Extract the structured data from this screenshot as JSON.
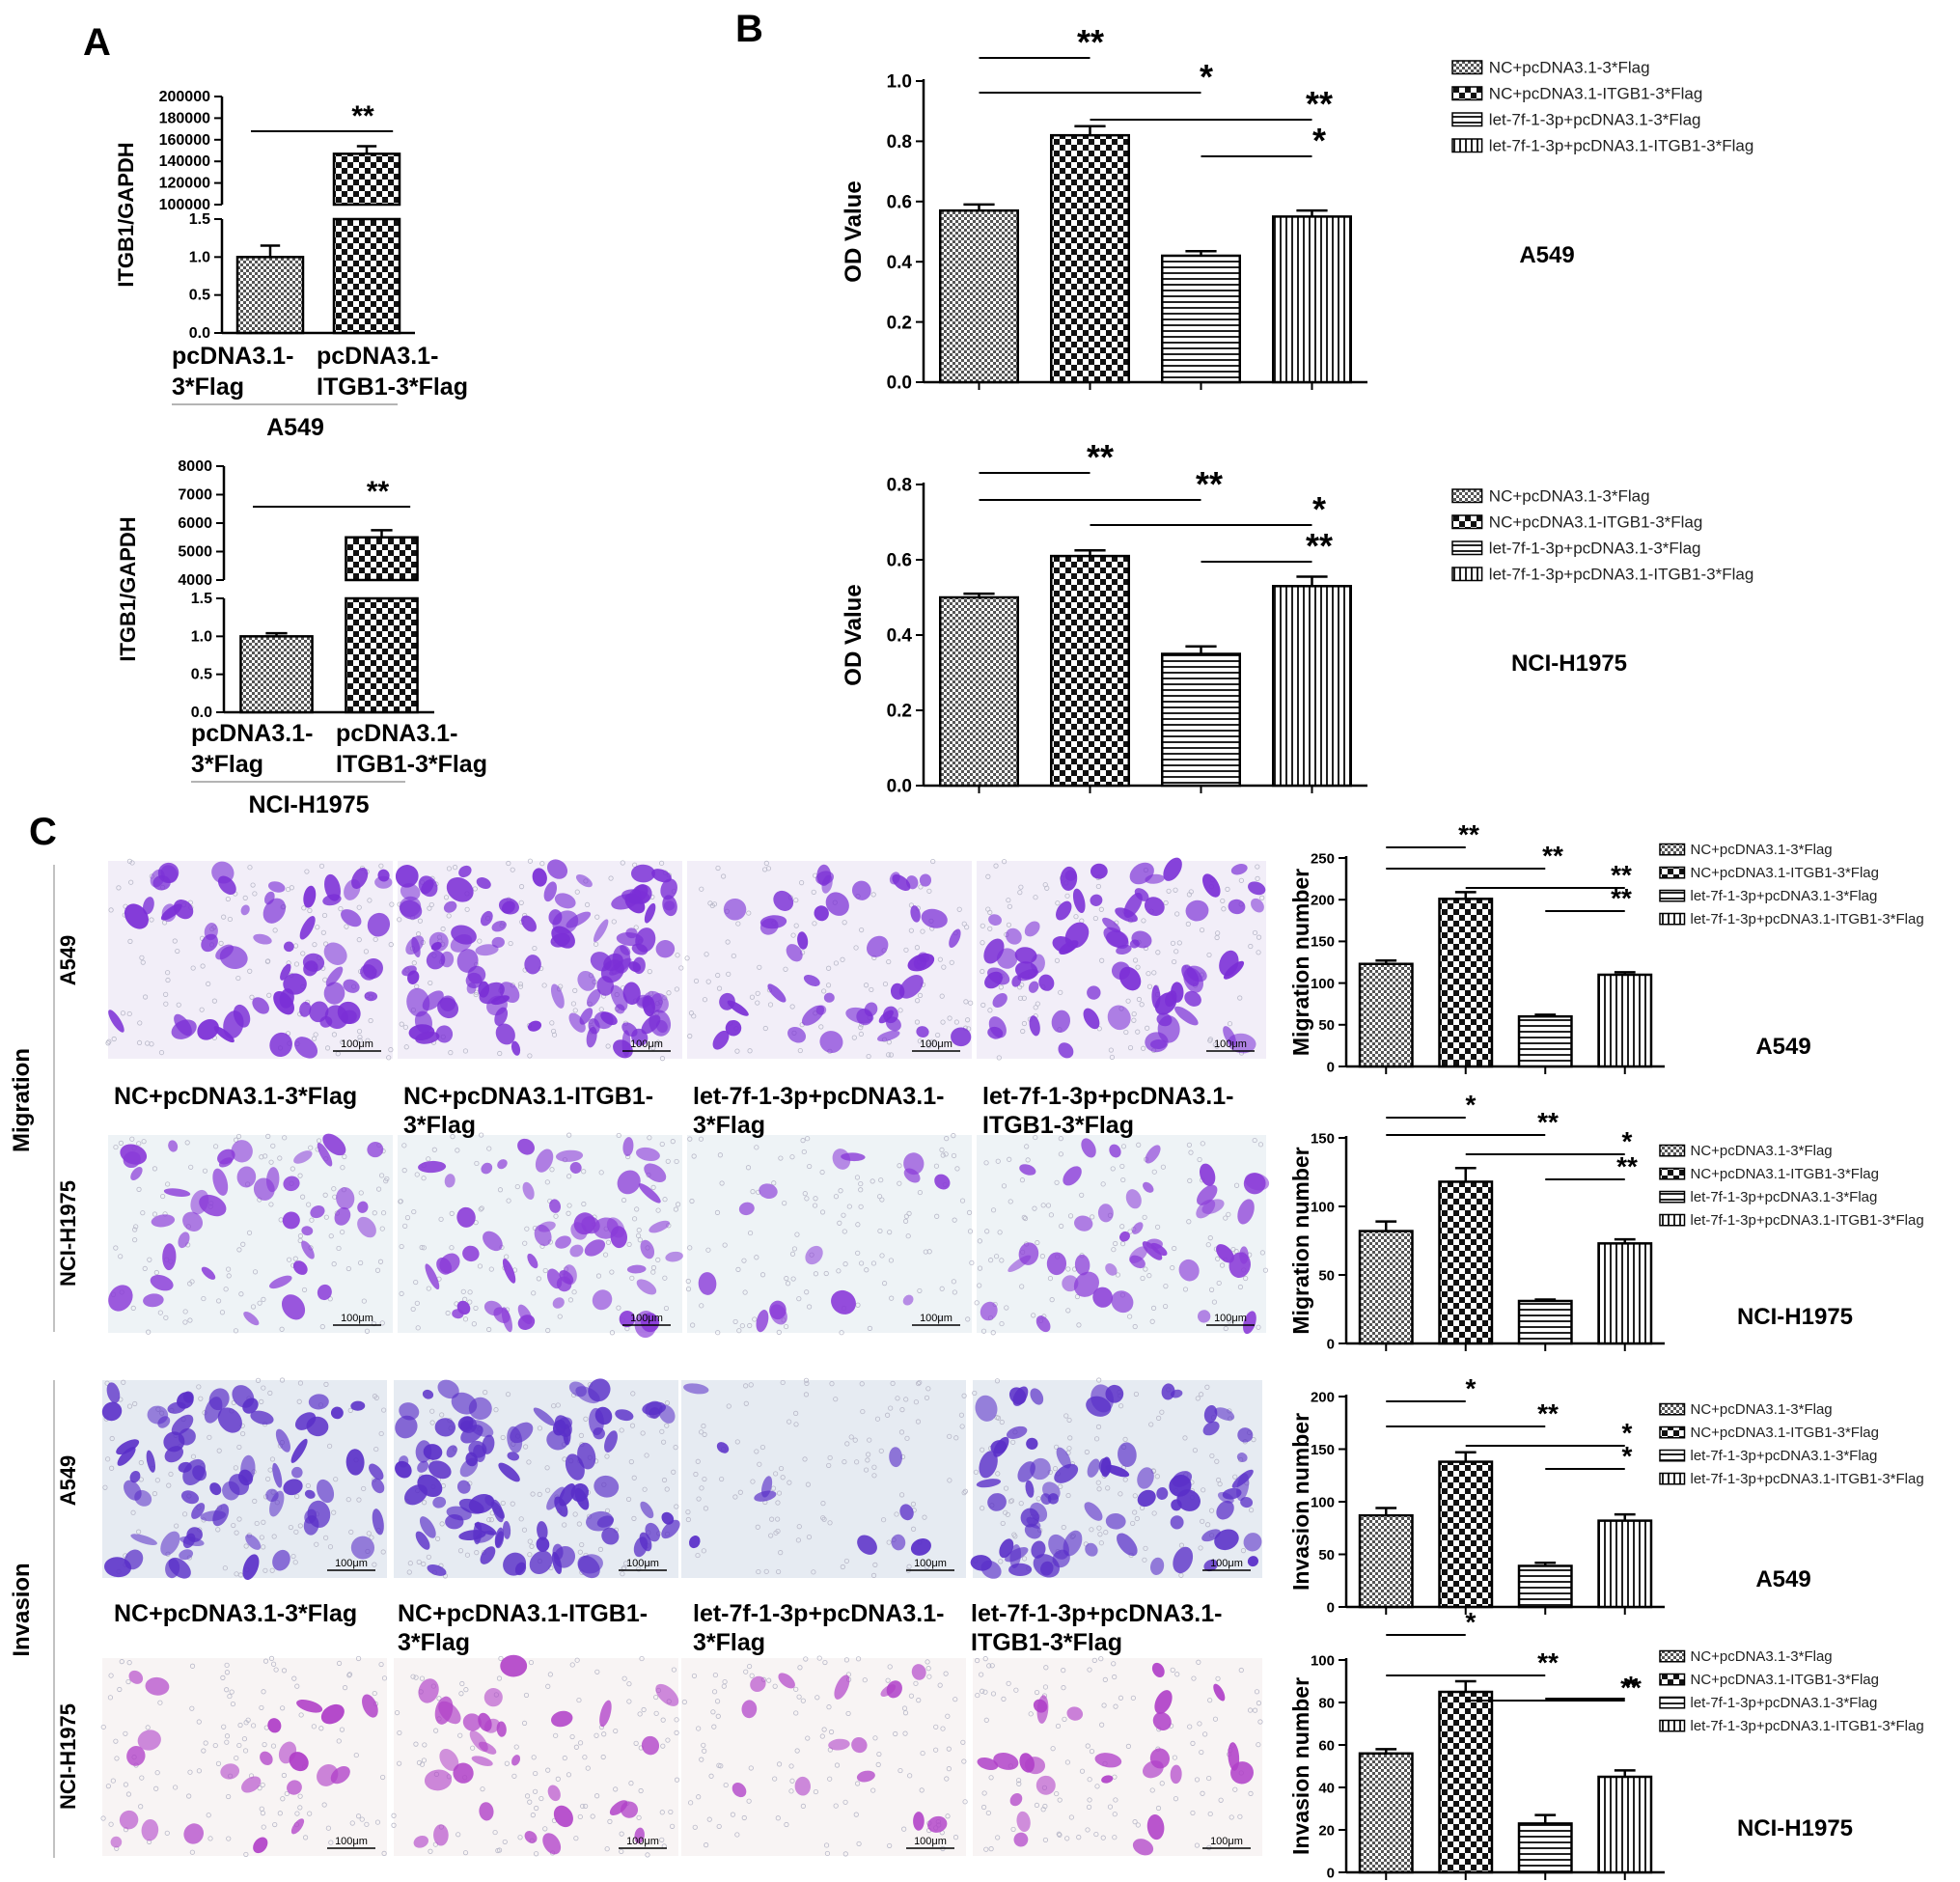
{
  "panels": {
    "a": "A",
    "b": "B",
    "c": "C"
  },
  "colors": {
    "bar_fill": "#ffffff",
    "bar_stroke": "#000000",
    "dark_hatch": "#555555",
    "stain_a": "#8a2be2",
    "stain_b": "#7b1fa2",
    "stain_c": "#a020c0",
    "stain_bg": "#efe9f5"
  },
  "labels": {
    "sections": {
      "migration": "Migration",
      "invasion": "Invasion"
    },
    "cells": {
      "a549": "A549",
      "h1975": "NCI-H1975"
    },
    "scale": "100μm",
    "images": [
      {
        "line1": "NC+pcDNA3.1-3*Flag",
        "line2": ""
      },
      {
        "line1": "NC+pcDNA3.1-ITGB1-",
        "line2": "3*Flag"
      },
      {
        "line1": "let-7f-1-3p+pcDNA3.1-",
        "line2": "3*Flag"
      },
      {
        "line1": "let-7f-1-3p+pcDNA3.1-",
        "line2": "ITGB1-3*Flag"
      }
    ]
  },
  "chart_data": [
    {
      "id": "A1",
      "type": "bar",
      "ylabel": "ITGB1/GAPDH",
      "group_label": "A549",
      "broken_axis": true,
      "categories": [
        [
          "pcDNA3.1-",
          "3*Flag"
        ],
        [
          "pcDNA3.1-",
          "ITGB1-3*Flag"
        ]
      ],
      "values": [
        1.0,
        147000
      ],
      "errors": [
        0.15,
        7000
      ],
      "ylim_lower": [
        0,
        1.5
      ],
      "ylim_upper": [
        100000,
        200000
      ],
      "yticks_lower": [
        0.0,
        0.5,
        1.0,
        1.5
      ],
      "yticks_upper": [
        100000,
        120000,
        140000,
        160000,
        180000,
        200000
      ],
      "sig": [
        {
          "from": 0,
          "to": 1,
          "label": "**"
        }
      ]
    },
    {
      "id": "A2",
      "type": "bar",
      "ylabel": "ITGB1/GAPDH",
      "group_label": "NCI-H1975",
      "broken_axis": true,
      "categories": [
        [
          "pcDNA3.1-",
          "3*Flag"
        ],
        [
          "pcDNA3.1-",
          "ITGB1-3*Flag"
        ]
      ],
      "values": [
        1.0,
        5500
      ],
      "errors": [
        0.04,
        250
      ],
      "ylim_lower": [
        0,
        1.5
      ],
      "ylim_upper": [
        4000,
        8000
      ],
      "yticks_lower": [
        0.0,
        0.5,
        1.0,
        1.5
      ],
      "yticks_upper": [
        4000,
        5000,
        6000,
        7000,
        8000
      ],
      "sig": [
        {
          "from": 0,
          "to": 1,
          "label": "**"
        }
      ]
    },
    {
      "id": "B1",
      "type": "bar",
      "ylabel": "OD Value",
      "cell": "A549",
      "series": [
        "NC+pcDNA3.1-3*Flag",
        "NC+pcDNA3.1-ITGB1-3*Flag",
        "let-7f-1-3p+pcDNA3.1-3*Flag",
        "let-7f-1-3p+pcDNA3.1-ITGB1-3*Flag"
      ],
      "values": [
        0.57,
        0.82,
        0.42,
        0.55
      ],
      "errors": [
        0.02,
        0.03,
        0.015,
        0.02
      ],
      "ylim": [
        0,
        1.0
      ],
      "yticks": [
        0.0,
        0.2,
        0.4,
        0.6,
        0.8,
        1.0
      ],
      "sig": [
        {
          "from": 0,
          "to": 1,
          "label": "**"
        },
        {
          "from": 0,
          "to": 2,
          "label": "*"
        },
        {
          "from": 1,
          "to": 3,
          "label": "**"
        },
        {
          "from": 2,
          "to": 3,
          "label": "*"
        }
      ]
    },
    {
      "id": "B2",
      "type": "bar",
      "ylabel": "OD Value",
      "cell": "NCI-H1975",
      "series": [
        "NC+pcDNA3.1-3*Flag",
        "NC+pcDNA3.1-ITGB1-3*Flag",
        "let-7f-1-3p+pcDNA3.1-3*Flag",
        "let-7f-1-3p+pcDNA3.1-ITGB1-3*Flag"
      ],
      "values": [
        0.5,
        0.61,
        0.35,
        0.53
      ],
      "errors": [
        0.01,
        0.015,
        0.02,
        0.025
      ],
      "ylim": [
        0,
        0.8
      ],
      "yticks": [
        0.0,
        0.2,
        0.4,
        0.6,
        0.8
      ],
      "sig": [
        {
          "from": 0,
          "to": 1,
          "label": "**"
        },
        {
          "from": 0,
          "to": 2,
          "label": "**"
        },
        {
          "from": 1,
          "to": 3,
          "label": "*"
        },
        {
          "from": 2,
          "to": 3,
          "label": "**"
        }
      ]
    },
    {
      "id": "C1",
      "type": "bar",
      "ylabel": "Migration number",
      "cell": "A549",
      "series": [
        "NC+pcDNA3.1-3*Flag",
        "NC+pcDNA3.1-ITGB1-3*Flag",
        "let-7f-1-3p+pcDNA3.1-3*Flag",
        "let-7f-1-3p+pcDNA3.1-ITGB1-3*Flag"
      ],
      "values": [
        123,
        201,
        60,
        110
      ],
      "errors": [
        4,
        8,
        2,
        3
      ],
      "ylim": [
        0,
        250
      ],
      "yticks": [
        0,
        50,
        100,
        150,
        200,
        250
      ],
      "sig": [
        {
          "from": 0,
          "to": 1,
          "label": "**"
        },
        {
          "from": 0,
          "to": 2,
          "label": "**"
        },
        {
          "from": 1,
          "to": 3,
          "label": "**"
        },
        {
          "from": 2,
          "to": 3,
          "label": "**"
        }
      ]
    },
    {
      "id": "C2",
      "type": "bar",
      "ylabel": "Migration number",
      "cell": "NCI-H1975",
      "series": [
        "NC+pcDNA3.1-3*Flag",
        "NC+pcDNA3.1-ITGB1-3*Flag",
        "let-7f-1-3p+pcDNA3.1-3*Flag",
        "let-7f-1-3p+pcDNA3.1-ITGB1-3*Flag"
      ],
      "values": [
        82,
        118,
        31,
        73
      ],
      "errors": [
        7,
        10,
        1,
        3
      ],
      "ylim": [
        0,
        150
      ],
      "yticks": [
        0,
        50,
        100,
        150
      ],
      "sig": [
        {
          "from": 0,
          "to": 1,
          "label": "*"
        },
        {
          "from": 0,
          "to": 2,
          "label": "**"
        },
        {
          "from": 1,
          "to": 3,
          "label": "*"
        },
        {
          "from": 2,
          "to": 3,
          "label": "**"
        }
      ]
    },
    {
      "id": "C3",
      "type": "bar",
      "ylabel": "Invasion  number",
      "cell": "A549",
      "series": [
        "NC+pcDNA3.1-3*Flag",
        "NC+pcDNA3.1-ITGB1-3*Flag",
        "let-7f-1-3p+pcDNA3.1-3*Flag",
        "let-7f-1-3p+pcDNA3.1-ITGB1-3*Flag"
      ],
      "values": [
        87,
        138,
        39,
        82
      ],
      "errors": [
        7,
        9,
        3,
        6
      ],
      "ylim": [
        0,
        200
      ],
      "yticks": [
        0,
        50,
        100,
        150,
        200
      ],
      "sig": [
        {
          "from": 0,
          "to": 1,
          "label": "*"
        },
        {
          "from": 0,
          "to": 2,
          "label": "**"
        },
        {
          "from": 1,
          "to": 3,
          "label": "*"
        },
        {
          "from": 2,
          "to": 3,
          "label": "*"
        }
      ]
    },
    {
      "id": "C4",
      "type": "bar",
      "ylabel": "Invasion  number",
      "cell": "NCI-H1975",
      "series": [
        "NC+pcDNA3.1-3*Flag",
        "NC+pcDNA3.1-ITGB1-3*Flag",
        "let-7f-1-3p+pcDNA3.1-3*Flag",
        "let-7f-1-3p+pcDNA3.1-ITGB1-3*Flag"
      ],
      "values": [
        56,
        85,
        23,
        45
      ],
      "errors": [
        2,
        5,
        4,
        3
      ],
      "ylim": [
        0,
        100
      ],
      "yticks": [
        0,
        20,
        40,
        60,
        80,
        100
      ],
      "sig": [
        {
          "from": 0,
          "to": 1,
          "label": "*"
        },
        {
          "from": 0,
          "to": 2,
          "label": "**"
        },
        {
          "from": 1,
          "to": 3,
          "label": "**"
        },
        {
          "from": 2,
          "to": 3,
          "label": "*"
        }
      ]
    }
  ]
}
